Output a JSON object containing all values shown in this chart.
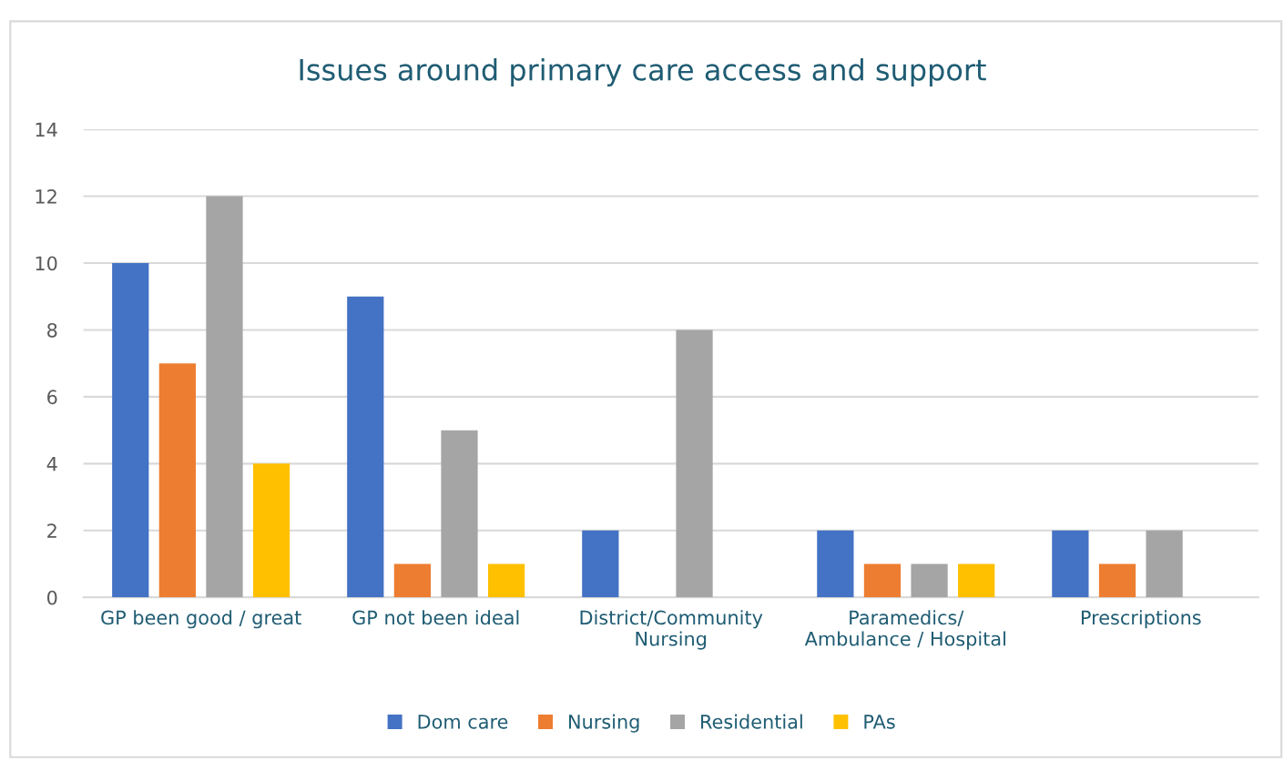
{
  "chart_data": {
    "type": "bar",
    "title": "Issues around primary care access and support",
    "categories": [
      "GP been good / great",
      "GP not been ideal",
      "District/Community\nNursing",
      "Paramedics/\nAmbulance / Hospital",
      "Prescriptions"
    ],
    "series": [
      {
        "name": "Dom care",
        "color": "#4472c4",
        "values": [
          10,
          9,
          2,
          2,
          2
        ]
      },
      {
        "name": "Nursing",
        "color": "#ed7d31",
        "values": [
          7,
          1,
          0,
          1,
          1
        ]
      },
      {
        "name": "Residential",
        "color": "#a5a5a5",
        "values": [
          12,
          5,
          8,
          1,
          2
        ]
      },
      {
        "name": "PAs",
        "color": "#ffc000",
        "values": [
          4,
          1,
          0,
          1,
          0
        ]
      }
    ],
    "ylim": [
      0,
      14
    ],
    "yticks": [
      0,
      2,
      4,
      6,
      8,
      10,
      12,
      14
    ],
    "grid": "y",
    "legend": "bottom"
  }
}
